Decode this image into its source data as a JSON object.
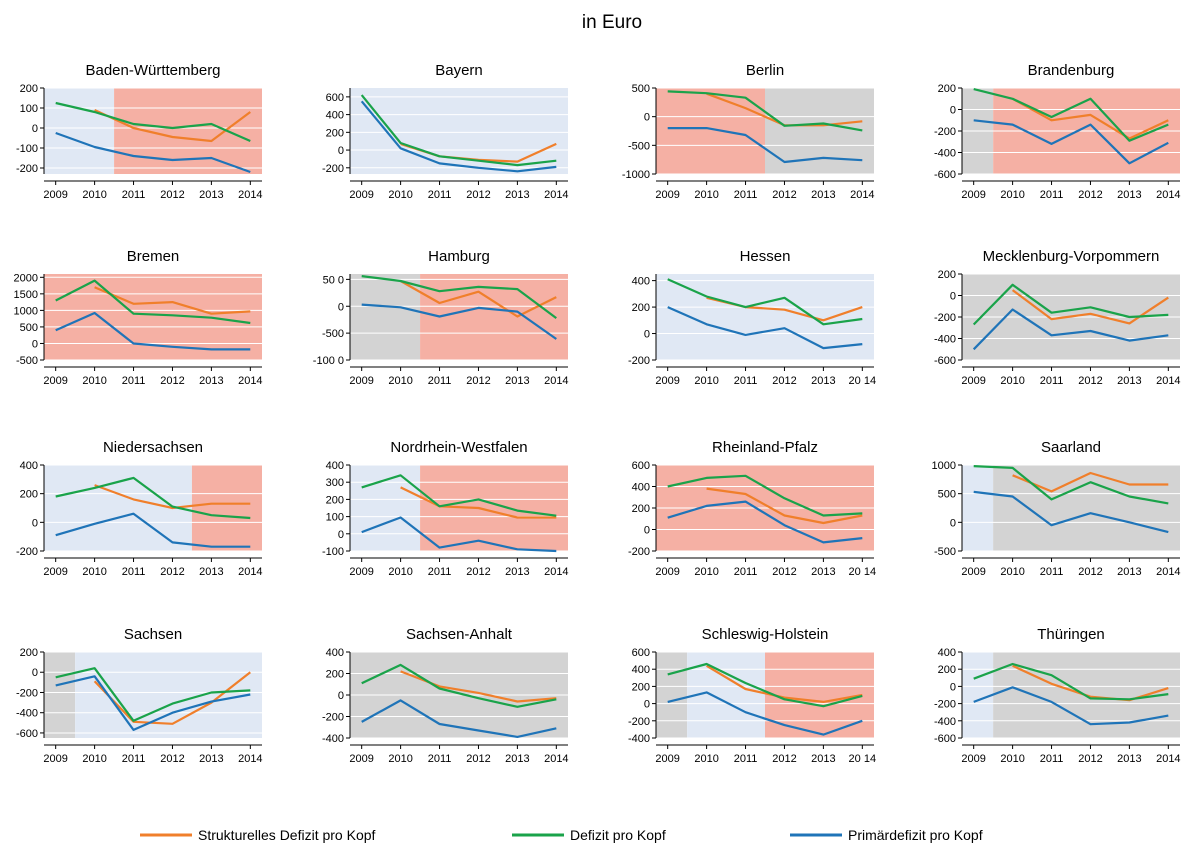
{
  "figure": {
    "title": "in Euro",
    "legend": [
      {
        "label": "Strukturelles Defizit pro Kopf",
        "color": "#f07f2b"
      },
      {
        "label": "Defizit pro Kopf",
        "color": "#1aa34a"
      },
      {
        "label": "Primärdefizit pro Kopf",
        "color": "#1f74b8"
      }
    ]
  },
  "colors": {
    "blue_bg": "#e0e8f4",
    "red_bg": "#f5b0a4",
    "gray_bg": "#d3d3d3",
    "struct": "#f07f2b",
    "defizit": "#1aa34a",
    "primaer": "#1f74b8"
  },
  "chart_data": [
    {
      "type": "line",
      "title": "Baden-Württemberg",
      "x": [
        2009,
        2010,
        2011,
        2012,
        2013,
        2014
      ],
      "ylim": [
        -230,
        200
      ],
      "yticks": [
        -200,
        -100,
        0,
        100,
        200
      ],
      "background": [
        {
          "from": 2008.7,
          "to": 2010.5,
          "color": "blue"
        },
        {
          "from": 2010.5,
          "to": 2014.3,
          "color": "red"
        }
      ],
      "series": [
        {
          "name": "Strukturelles Defizit pro Kopf",
          "values": [
            null,
            90,
            0,
            -45,
            -65,
            80
          ]
        },
        {
          "name": "Defizit pro Kopf",
          "values": [
            125,
            80,
            20,
            0,
            20,
            -65
          ]
        },
        {
          "name": "Primärdefizit pro Kopf",
          "values": [
            -25,
            -95,
            -140,
            -160,
            -150,
            -220
          ]
        }
      ]
    },
    {
      "type": "line",
      "title": "Bayern",
      "x": [
        2009,
        2010,
        2011,
        2012,
        2013,
        2014
      ],
      "ylim": [
        -270,
        700
      ],
      "yticks": [
        -200,
        0,
        200,
        400,
        600
      ],
      "background": [
        {
          "from": 2008.7,
          "to": 2014.3,
          "color": "blue"
        }
      ],
      "series": [
        {
          "name": "Strukturelles Defizit pro Kopf",
          "values": [
            null,
            70,
            -70,
            -110,
            -130,
            70
          ]
        },
        {
          "name": "Defizit pro Kopf",
          "values": [
            620,
            80,
            -70,
            -120,
            -170,
            -120
          ]
        },
        {
          "name": "Primärdefizit pro Kopf",
          "values": [
            550,
            20,
            -150,
            -200,
            -240,
            -190
          ]
        }
      ]
    },
    {
      "type": "line",
      "title": "Berlin",
      "x": [
        2009,
        2010,
        2011,
        2012,
        2013,
        2014
      ],
      "ylim": [
        -1000,
        500
      ],
      "yticks": [
        -1000,
        -500,
        0,
        500
      ],
      "background": [
        {
          "from": 2008.7,
          "to": 2011.5,
          "color": "red"
        },
        {
          "from": 2011.5,
          "to": 2014.3,
          "color": "gray"
        }
      ],
      "series": [
        {
          "name": "Strukturelles Defizit pro Kopf",
          "values": [
            null,
            400,
            150,
            -150,
            -150,
            -80
          ]
        },
        {
          "name": "Defizit pro Kopf",
          "values": [
            440,
            410,
            330,
            -160,
            -120,
            -240
          ]
        },
        {
          "name": "Primärdefizit pro Kopf",
          "values": [
            -200,
            -200,
            -320,
            -790,
            -720,
            -760
          ]
        }
      ]
    },
    {
      "type": "line",
      "title": "Brandenburg",
      "x": [
        2009,
        2010,
        2011,
        2012,
        2013,
        2014
      ],
      "ylim": [
        -600,
        200
      ],
      "yticks": [
        -600,
        -400,
        -200,
        0,
        200
      ],
      "background": [
        {
          "from": 2008.7,
          "to": 2009.5,
          "color": "gray"
        },
        {
          "from": 2009.5,
          "to": 2014.3,
          "color": "red"
        }
      ],
      "series": [
        {
          "name": "Strukturelles Defizit pro Kopf",
          "values": [
            null,
            100,
            -100,
            -50,
            -270,
            -100
          ]
        },
        {
          "name": "Defizit pro Kopf",
          "values": [
            190,
            100,
            -70,
            100,
            -290,
            -140
          ]
        },
        {
          "name": "Primärdefizit pro Kopf",
          "values": [
            -100,
            -140,
            -320,
            -140,
            -500,
            -310
          ]
        }
      ]
    },
    {
      "type": "line",
      "title": "Bremen",
      "x": [
        2009,
        2010,
        2011,
        2012,
        2013,
        2014
      ],
      "ylim": [
        -500,
        2100
      ],
      "yticks": [
        -500,
        0,
        500,
        1000,
        1500,
        2000
      ],
      "background": [
        {
          "from": 2008.7,
          "to": 2014.3,
          "color": "red"
        }
      ],
      "series": [
        {
          "name": "Strukturelles Defizit pro Kopf",
          "values": [
            null,
            1700,
            1200,
            1250,
            900,
            970
          ]
        },
        {
          "name": "Defizit pro Kopf",
          "values": [
            1300,
            1900,
            900,
            850,
            780,
            620
          ]
        },
        {
          "name": "Primärdefizit pro Kopf",
          "values": [
            400,
            920,
            0,
            -100,
            -180,
            -180
          ]
        }
      ]
    },
    {
      "type": "line",
      "title": "Hamburg",
      "x": [
        2009,
        2010,
        2011,
        2012,
        2013,
        2014
      ],
      "ylim": [
        -1000,
        600
      ],
      "yticks": [
        -1000,
        -500,
        0,
        500
      ],
      "ytick_labels": [
        "-100 0",
        "-500",
        "0",
        "50 0"
      ],
      "background": [
        {
          "from": 2008.7,
          "to": 2010.5,
          "color": "gray"
        },
        {
          "from": 2010.5,
          "to": 2014.3,
          "color": "red"
        }
      ],
      "series": [
        {
          "name": "Strukturelles Defizit pro Kopf",
          "values": [
            null,
            470,
            60,
            270,
            -190,
            170
          ]
        },
        {
          "name": "Defizit pro Kopf",
          "values": [
            560,
            470,
            280,
            360,
            320,
            -220
          ]
        },
        {
          "name": "Primärdefizit pro Kopf",
          "values": [
            30,
            -20,
            -190,
            -30,
            -100,
            -610
          ]
        }
      ]
    },
    {
      "type": "line",
      "title": "Hessen",
      "x": [
        2009,
        2010,
        2011,
        2012,
        2013,
        2014
      ],
      "xtick_labels": [
        "2009",
        "2010",
        "2011",
        "2012",
        "2013",
        "20 14"
      ],
      "ylim": [
        -200,
        450
      ],
      "yticks": [
        -200,
        0,
        200,
        400
      ],
      "background": [
        {
          "from": 2008.7,
          "to": 2014.3,
          "color": "blue"
        }
      ],
      "series": [
        {
          "name": "Strukturelles Defizit pro Kopf",
          "values": [
            null,
            270,
            200,
            180,
            100,
            200
          ]
        },
        {
          "name": "Defizit pro Kopf",
          "values": [
            410,
            280,
            200,
            270,
            70,
            110
          ]
        },
        {
          "name": "Primärdefizit pro Kopf",
          "values": [
            200,
            70,
            -10,
            40,
            -110,
            -80
          ]
        }
      ]
    },
    {
      "type": "line",
      "title": "Mecklenburg-Vorpommern",
      "x": [
        2009,
        2010,
        2011,
        2012,
        2013,
        2014
      ],
      "ylim": [
        -600,
        200
      ],
      "yticks": [
        -600,
        -400,
        -200,
        0,
        200
      ],
      "background": [
        {
          "from": 2008.7,
          "to": 2014.3,
          "color": "gray"
        }
      ],
      "series": [
        {
          "name": "Strukturelles Defizit pro Kopf",
          "values": [
            null,
            50,
            -220,
            -170,
            -260,
            -20
          ]
        },
        {
          "name": "Defizit pro Kopf",
          "values": [
            -270,
            100,
            -160,
            -110,
            -200,
            -180
          ]
        },
        {
          "name": "Primärdefizit pro Kopf",
          "values": [
            -500,
            -130,
            -370,
            -330,
            -420,
            -370
          ]
        }
      ]
    },
    {
      "type": "line",
      "title": "Niedersachsen",
      "x": [
        2009,
        2010,
        2011,
        2012,
        2013,
        2014
      ],
      "ylim": [
        -200,
        400
      ],
      "yticks": [
        -200,
        0,
        200,
        400
      ],
      "background": [
        {
          "from": 2008.7,
          "to": 2012.5,
          "color": "blue"
        },
        {
          "from": 2012.5,
          "to": 2014.3,
          "color": "red"
        }
      ],
      "series": [
        {
          "name": "Strukturelles Defizit pro Kopf",
          "values": [
            null,
            260,
            160,
            100,
            130,
            130
          ]
        },
        {
          "name": "Defizit pro Kopf",
          "values": [
            180,
            240,
            310,
            110,
            50,
            30
          ]
        },
        {
          "name": "Primärdefizit pro Kopf",
          "values": [
            -90,
            -10,
            60,
            -140,
            -170,
            -170
          ]
        }
      ]
    },
    {
      "type": "line",
      "title": "Nordrhein-Westfalen",
      "x": [
        2009,
        2010,
        2011,
        2012,
        2013,
        2014
      ],
      "ylim": [
        -100,
        400
      ],
      "yticks": [
        -100,
        0,
        100,
        200,
        300,
        400
      ],
      "background": [
        {
          "from": 2008.7,
          "to": 2010.5,
          "color": "blue"
        },
        {
          "from": 2010.5,
          "to": 2014.3,
          "color": "red"
        }
      ],
      "series": [
        {
          "name": "Strukturelles Defizit pro Kopf",
          "values": [
            null,
            270,
            160,
            150,
            95,
            95
          ]
        },
        {
          "name": "Defizit pro Kopf",
          "values": [
            270,
            340,
            160,
            200,
            135,
            105
          ]
        },
        {
          "name": "Primärdefizit pro Kopf",
          "values": [
            10,
            95,
            -80,
            -40,
            -90,
            -100
          ]
        }
      ]
    },
    {
      "type": "line",
      "title": "Rheinland-Pfalz",
      "x": [
        2009,
        2010,
        2011,
        2012,
        2013,
        2014
      ],
      "xtick_labels": [
        "2009",
        "2010",
        "2011",
        "2012",
        "2013",
        "20 14"
      ],
      "ylim": [
        -200,
        600
      ],
      "yticks": [
        -200,
        0,
        200,
        400,
        600
      ],
      "background": [
        {
          "from": 2008.7,
          "to": 2014.3,
          "color": "red"
        }
      ],
      "series": [
        {
          "name": "Strukturelles Defizit pro Kopf",
          "values": [
            null,
            380,
            330,
            130,
            60,
            130
          ]
        },
        {
          "name": "Defizit pro Kopf",
          "values": [
            400,
            480,
            500,
            290,
            130,
            150
          ]
        },
        {
          "name": "Primärdefizit pro Kopf",
          "values": [
            110,
            220,
            260,
            40,
            -120,
            -80
          ]
        }
      ]
    },
    {
      "type": "line",
      "title": "Saarland",
      "x": [
        2009,
        2010,
        2011,
        2012,
        2013,
        2014
      ],
      "ylim": [
        -500,
        1000
      ],
      "yticks": [
        -500,
        0,
        500,
        1000
      ],
      "background": [
        {
          "from": 2008.7,
          "to": 2009.5,
          "color": "blue"
        },
        {
          "from": 2009.5,
          "to": 2014.3,
          "color": "gray"
        }
      ],
      "series": [
        {
          "name": "Strukturelles Defizit pro Kopf",
          "values": [
            null,
            820,
            540,
            860,
            660,
            660
          ]
        },
        {
          "name": "Defizit pro Kopf",
          "values": [
            980,
            950,
            400,
            700,
            450,
            330
          ]
        },
        {
          "name": "Primärdefizit pro Kopf",
          "values": [
            530,
            450,
            -50,
            160,
            0,
            -170
          ]
        }
      ]
    },
    {
      "type": "line",
      "title": "Sachsen",
      "x": [
        2009,
        2010,
        2011,
        2012,
        2013,
        2014
      ],
      "ylim": [
        -650,
        200
      ],
      "yticks": [
        -600,
        -400,
        -200,
        0,
        200
      ],
      "background": [
        {
          "from": 2008.7,
          "to": 2009.5,
          "color": "gray"
        },
        {
          "from": 2009.5,
          "to": 2014.3,
          "color": "blue"
        }
      ],
      "series": [
        {
          "name": "Strukturelles Defizit pro Kopf",
          "values": [
            null,
            -90,
            -490,
            -510,
            -300,
            0
          ]
        },
        {
          "name": "Defizit pro Kopf",
          "values": [
            -50,
            40,
            -480,
            -310,
            -200,
            -180
          ]
        },
        {
          "name": "Primärdefizit pro Kopf",
          "values": [
            -130,
            -40,
            -570,
            -400,
            -290,
            -220
          ]
        }
      ]
    },
    {
      "type": "line",
      "title": "Sachsen-Anhalt",
      "x": [
        2009,
        2010,
        2011,
        2012,
        2013,
        2014
      ],
      "ylim": [
        -400,
        400
      ],
      "yticks": [
        -400,
        -200,
        0,
        200,
        400
      ],
      "background": [
        {
          "from": 2008.7,
          "to": 2014.3,
          "color": "gray"
        }
      ],
      "series": [
        {
          "name": "Strukturelles Defizit pro Kopf",
          "values": [
            null,
            220,
            80,
            20,
            -60,
            -30
          ]
        },
        {
          "name": "Defizit pro Kopf",
          "values": [
            110,
            280,
            60,
            -30,
            -110,
            -40
          ]
        },
        {
          "name": "Primärdefizit pro Kopf",
          "values": [
            -250,
            -50,
            -270,
            -330,
            -390,
            -310
          ]
        }
      ]
    },
    {
      "type": "line",
      "title": "Schleswig-Holstein",
      "x": [
        2009,
        2010,
        2011,
        2012,
        2013,
        2014
      ],
      "xtick_labels": [
        "2009",
        "2010",
        "2011",
        "2012",
        "2013",
        "20 14"
      ],
      "ylim": [
        -400,
        600
      ],
      "yticks": [
        -400,
        -200,
        0,
        200,
        400,
        600
      ],
      "background": [
        {
          "from": 2008.7,
          "to": 2009.5,
          "color": "gray"
        },
        {
          "from": 2009.5,
          "to": 2011.5,
          "color": "blue"
        },
        {
          "from": 2011.5,
          "to": 2014.3,
          "color": "red"
        }
      ],
      "series": [
        {
          "name": "Strukturelles Defizit pro Kopf",
          "values": [
            null,
            440,
            170,
            70,
            20,
            100
          ]
        },
        {
          "name": "Defizit pro Kopf",
          "values": [
            340,
            460,
            240,
            50,
            -30,
            90
          ]
        },
        {
          "name": "Primärdefizit pro Kopf",
          "values": [
            20,
            130,
            -100,
            -250,
            -360,
            -200
          ]
        }
      ]
    },
    {
      "type": "line",
      "title": "Thüringen",
      "x": [
        2009,
        2010,
        2011,
        2012,
        2013,
        2014
      ],
      "ylim": [
        -600,
        400
      ],
      "yticks": [
        -600,
        -400,
        -200,
        0,
        200,
        400
      ],
      "background": [
        {
          "from": 2008.7,
          "to": 2009.5,
          "color": "blue"
        },
        {
          "from": 2009.5,
          "to": 2014.3,
          "color": "gray"
        }
      ],
      "series": [
        {
          "name": "Strukturelles Defizit pro Kopf",
          "values": [
            null,
            240,
            30,
            -120,
            -160,
            -20
          ]
        },
        {
          "name": "Defizit pro Kopf",
          "values": [
            90,
            260,
            130,
            -140,
            -150,
            -90
          ]
        },
        {
          "name": "Primärdefizit pro Kopf",
          "values": [
            -180,
            -10,
            -180,
            -440,
            -420,
            -340
          ]
        }
      ]
    }
  ]
}
